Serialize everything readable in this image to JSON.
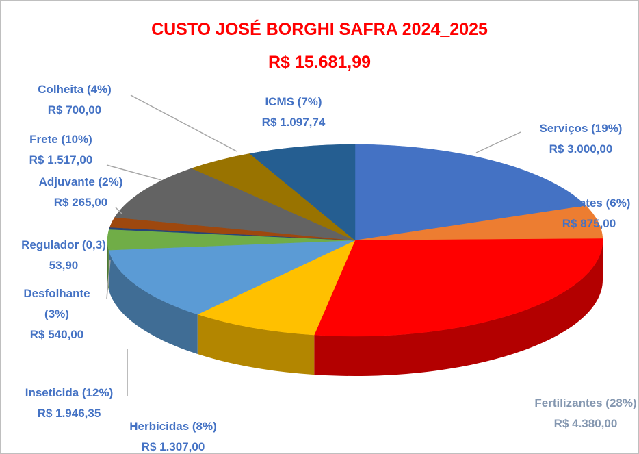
{
  "chart_data": {
    "type": "pie3d",
    "title": "CUSTO JOSÉ BORGHI SAFRA 2024_2025",
    "subtitle": "R$ 15.681,99",
    "categories": [
      "Serviços (19%)",
      "Sementes (6%)",
      "Fertilizantes (28%)",
      "Herbicidas (8%)",
      "Inseticida (12%)",
      "Desfolhante (3%)",
      "Regulador (0,3)",
      "Adjuvante (2%)",
      "Frete (10%)",
      "Colheita (4%)",
      "ICMS (7%)"
    ],
    "values": [
      3000,
      875,
      4380,
      1307,
      1946.35,
      540,
      53.9,
      265,
      1517,
      700,
      1097.74
    ],
    "value_labels": [
      "R$ 3.000,00",
      "R$ 875,00",
      "R$ 4.380,00",
      "R$ 1.307,00",
      "R$ 1.946,35",
      "R$ 540,00",
      "53,90",
      "R$ 265,00",
      "R$ 1.517,00",
      "R$ 700,00",
      "R$ 1.097,74"
    ],
    "colors": [
      "#4472c4",
      "#ed7d31",
      "#ff0000",
      "#ffc000",
      "#5b9bd5",
      "#70ad47",
      "#264478",
      "#9e480e",
      "#636363",
      "#997300",
      "#255e91"
    ]
  }
}
